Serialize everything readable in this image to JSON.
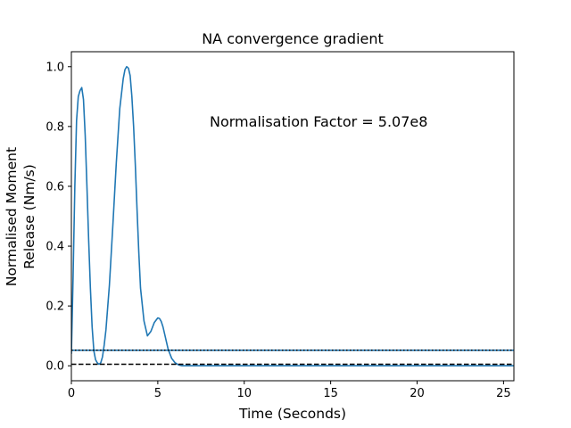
{
  "chart_data": {
    "type": "line",
    "title": "NA convergence gradient",
    "xlabel": "Time (Seconds)",
    "ylabel_lines": [
      "Normalised Moment",
      "Release (Nm/s)"
    ],
    "annotation": "Normalisation Factor = 5.07e8",
    "xlim": [
      0,
      25.6
    ],
    "ylim": [
      -0.05,
      1.05
    ],
    "x_ticks": [
      0,
      5,
      10,
      15,
      20,
      25
    ],
    "y_ticks": [
      0.0,
      0.2,
      0.4,
      0.6,
      0.8,
      1.0
    ],
    "x_tick_labels": [
      "0",
      "5",
      "10",
      "15",
      "20",
      "25"
    ],
    "y_tick_labels": [
      "0.0",
      "0.2",
      "0.4",
      "0.6",
      "0.8",
      "1.0"
    ],
    "grid": false,
    "series": [
      {
        "style": "solid",
        "color": "#1f77b4",
        "x": [
          0.0,
          0.1,
          0.2,
          0.3,
          0.4,
          0.5,
          0.6,
          0.7,
          0.8,
          0.9,
          1.0,
          1.1,
          1.2,
          1.3,
          1.4,
          1.5,
          1.6,
          1.7,
          1.8,
          1.9,
          2.0,
          2.2,
          2.4,
          2.6,
          2.8,
          3.0,
          3.1,
          3.2,
          3.3,
          3.4,
          3.5,
          3.6,
          3.7,
          3.8,
          3.9,
          4.0,
          4.2,
          4.4,
          4.6,
          4.8,
          5.0,
          5.1,
          5.2,
          5.3,
          5.4,
          5.5,
          5.6,
          5.8,
          6.0,
          6.2,
          6.4,
          6.6,
          7.0,
          8.0,
          10.0,
          15.0,
          20.0,
          25.6
        ],
        "y": [
          0.04,
          0.3,
          0.6,
          0.82,
          0.9,
          0.92,
          0.93,
          0.89,
          0.77,
          0.6,
          0.42,
          0.26,
          0.13,
          0.05,
          0.02,
          0.01,
          0.005,
          0.01,
          0.03,
          0.07,
          0.12,
          0.27,
          0.47,
          0.68,
          0.86,
          0.96,
          0.99,
          1.0,
          0.995,
          0.97,
          0.9,
          0.8,
          0.67,
          0.52,
          0.38,
          0.26,
          0.15,
          0.1,
          0.115,
          0.145,
          0.16,
          0.158,
          0.148,
          0.13,
          0.105,
          0.08,
          0.055,
          0.025,
          0.01,
          0.003,
          0.0,
          0.0,
          0.0,
          0.0,
          0.0,
          0.0,
          0.0,
          0.0
        ]
      },
      {
        "style": "solid",
        "color": "#1f77b4",
        "y_constant": 0.052
      },
      {
        "style": "dotted",
        "color": "#000000",
        "y_constant": 0.052
      },
      {
        "style": "dashed",
        "color": "#000000",
        "y_constant": 0.005
      }
    ]
  }
}
